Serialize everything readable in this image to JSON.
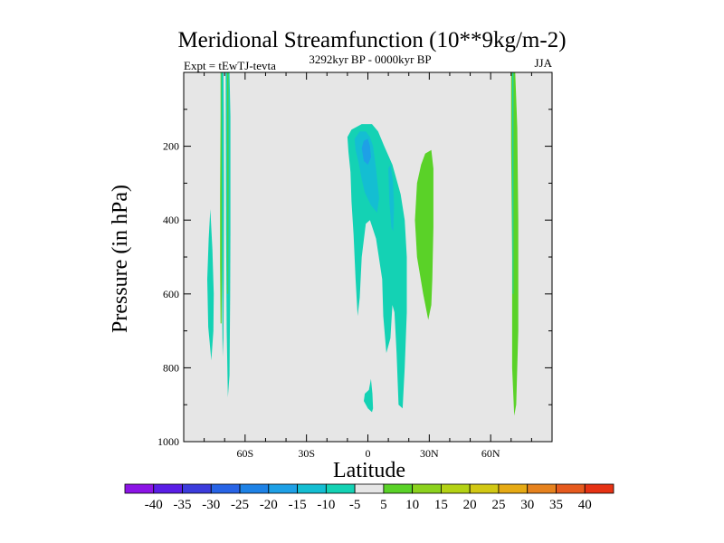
{
  "chart_data": {
    "type": "contour",
    "title": "Meridional Streamfunction (10**9kg/m-2)",
    "left_label": "Expt = tEwTJ-tevta",
    "center_label": "3292kyr BP - 0000kyr BP",
    "right_label": "JJA",
    "xlabel": "Latitude",
    "ylabel": "Pressure (in hPa)",
    "xlim": [
      -90,
      90
    ],
    "ylim": [
      1000,
      0
    ],
    "x_ticks": [
      {
        "value": -60,
        "label": "60S"
      },
      {
        "value": -30,
        "label": "30S"
      },
      {
        "value": 0,
        "label": "0"
      },
      {
        "value": 30,
        "label": "30N"
      },
      {
        "value": 60,
        "label": "60N"
      }
    ],
    "y_ticks": [
      {
        "value": 200,
        "label": "200"
      },
      {
        "value": 400,
        "label": "400"
      },
      {
        "value": 600,
        "label": "600"
      },
      {
        "value": 800,
        "label": "800"
      },
      {
        "value": 1000,
        "label": "1000"
      }
    ],
    "colorbar": {
      "levels": [
        "-40",
        "-35",
        "-30",
        "-25",
        "-20",
        "-15",
        "-10",
        "-5",
        "5",
        "10",
        "15",
        "20",
        "25",
        "30",
        "35",
        "40"
      ],
      "colors": [
        "#8c14e6",
        "#5a1ee6",
        "#3c3cdc",
        "#2864e6",
        "#1e82e6",
        "#1ea0e6",
        "#14bed2",
        "#14d2b4",
        "#e6e6e6",
        "#5ad228",
        "#8cd21e",
        "#b4d214",
        "#d2c814",
        "#e6aa14",
        "#e6821e",
        "#e65a1e",
        "#e63214"
      ]
    },
    "regions": [
      {
        "name": "band-70s-green",
        "level": "5 to 10",
        "color": "#5ad228",
        "points": [
          [
            -72,
            0
          ],
          [
            -71,
            0
          ],
          [
            -71,
            120
          ],
          [
            -71.2,
            330
          ],
          [
            -71.3,
            520
          ],
          [
            -71.5,
            680
          ],
          [
            -72,
            680
          ],
          [
            -72.2,
            520
          ],
          [
            -72.2,
            330
          ],
          [
            -72,
            120
          ]
        ]
      },
      {
        "name": "band-70s-cyan-a",
        "level": "-10 to -5",
        "color": "#14d2b4",
        "points": [
          [
            -71.6,
            0
          ],
          [
            -70.6,
            0
          ],
          [
            -70.4,
            120
          ],
          [
            -70.3,
            330
          ],
          [
            -70.4,
            560
          ],
          [
            -70.6,
            720
          ],
          [
            -71,
            770
          ],
          [
            -71.3,
            560
          ],
          [
            -71.4,
            330
          ]
        ]
      },
      {
        "name": "band-70s-cyan-b",
        "level": "-10 to -5",
        "color": "#14d2b4",
        "points": [
          [
            -69.5,
            0
          ],
          [
            -67.6,
            0
          ],
          [
            -67.2,
            120
          ],
          [
            -67.2,
            430
          ],
          [
            -67.3,
            610
          ],
          [
            -67.6,
            820
          ],
          [
            -68.4,
            880
          ],
          [
            -69,
            700
          ],
          [
            -69.3,
            430
          ]
        ]
      },
      {
        "name": "band-70s-green-b",
        "level": "5 to 10",
        "color": "#5ad228",
        "points": [
          [
            -68.7,
            0
          ],
          [
            -68.2,
            0
          ],
          [
            -68.1,
            300
          ],
          [
            -68.3,
            600
          ],
          [
            -68.6,
            600
          ],
          [
            -68.7,
            300
          ]
        ]
      },
      {
        "name": "blob-78s",
        "level": "-10 to -5",
        "color": "#14d2b4",
        "points": [
          [
            -77,
            370
          ],
          [
            -76,
            480
          ],
          [
            -75.3,
            600
          ],
          [
            -75.5,
            700
          ],
          [
            -76.5,
            780
          ],
          [
            -78,
            690
          ],
          [
            -78.5,
            560
          ],
          [
            -77.8,
            450
          ]
        ]
      },
      {
        "name": "central-cell",
        "level": "-10 to -5",
        "color": "#14d2b4",
        "points": [
          [
            -10,
            175
          ],
          [
            -8,
            155
          ],
          [
            -3,
            140
          ],
          [
            2,
            140
          ],
          [
            5,
            160
          ],
          [
            8,
            200
          ],
          [
            12,
            250
          ],
          [
            16,
            330
          ],
          [
            18,
            400
          ],
          [
            19,
            500
          ],
          [
            19,
            650
          ],
          [
            18,
            800
          ],
          [
            17,
            910
          ],
          [
            15,
            900
          ],
          [
            14,
            760
          ],
          [
            13,
            650
          ],
          [
            12,
            630
          ],
          [
            11,
            720
          ],
          [
            9,
            760
          ],
          [
            7.5,
            660
          ],
          [
            7,
            560
          ],
          [
            4,
            450
          ],
          [
            1,
            400
          ],
          [
            -1,
            410
          ],
          [
            -3,
            500
          ],
          [
            -4,
            610
          ],
          [
            -5,
            660
          ],
          [
            -6,
            560
          ],
          [
            -7,
            440
          ],
          [
            -8,
            350
          ],
          [
            -8.5,
            270
          ],
          [
            -9.5,
            215
          ]
        ]
      },
      {
        "name": "central-inner",
        "level": "-15 to -10",
        "color": "#14bed2",
        "points": [
          [
            -6.5,
            180
          ],
          [
            -4,
            160
          ],
          [
            -1,
            160
          ],
          [
            1,
            175
          ],
          [
            2.5,
            200
          ],
          [
            4,
            260
          ],
          [
            5.5,
            340
          ],
          [
            4.5,
            380
          ],
          [
            1.5,
            360
          ],
          [
            -1.5,
            325
          ],
          [
            -3,
            290
          ],
          [
            -4.5,
            245
          ],
          [
            -6,
            210
          ]
        ]
      },
      {
        "name": "central-core",
        "level": "-20 to -15",
        "color": "#1ea0e6",
        "points": [
          [
            -3,
            205
          ],
          [
            -2,
            185
          ],
          [
            0,
            180
          ],
          [
            1,
            200
          ],
          [
            1.5,
            230
          ],
          [
            0,
            250
          ],
          [
            -2,
            240
          ]
        ]
      },
      {
        "name": "central-side",
        "level": "-15 to -10",
        "color": "#14bed2",
        "points": [
          [
            10,
            260
          ],
          [
            11,
            250
          ],
          [
            12.2,
            290
          ],
          [
            12.8,
            360
          ],
          [
            12.4,
            430
          ],
          [
            11.5,
            420
          ],
          [
            10.5,
            350
          ]
        ]
      },
      {
        "name": "blob-bottom-0",
        "level": "-10 to -5",
        "color": "#14d2b4",
        "points": [
          [
            1.5,
            830
          ],
          [
            2.2,
            870
          ],
          [
            2.5,
            910
          ],
          [
            2,
            920
          ],
          [
            0,
            910
          ],
          [
            -2,
            890
          ],
          [
            -1.5,
            870
          ],
          [
            0.5,
            860
          ]
        ]
      },
      {
        "name": "green-25n",
        "level": "5 to 10",
        "color": "#5ad228",
        "points": [
          [
            28,
            220
          ],
          [
            31,
            210
          ],
          [
            32,
            260
          ],
          [
            32,
            420
          ],
          [
            31.5,
            560
          ],
          [
            31,
            630
          ],
          [
            29.5,
            670
          ],
          [
            27,
            600
          ],
          [
            24,
            500
          ],
          [
            23,
            400
          ],
          [
            24,
            300
          ],
          [
            26,
            250
          ]
        ]
      },
      {
        "name": "green-70n",
        "level": "5 to 10",
        "color": "#5ad228",
        "points": [
          [
            70,
            0
          ],
          [
            72,
            0
          ],
          [
            73,
            150
          ],
          [
            73.5,
            400
          ],
          [
            73.5,
            700
          ],
          [
            72.5,
            900
          ],
          [
            71.5,
            930
          ],
          [
            70.5,
            800
          ],
          [
            70.5,
            500
          ],
          [
            70,
            200
          ]
        ]
      },
      {
        "name": "cyan-70n",
        "level": "-10 to -5",
        "color": "#14d2b4",
        "points": [
          [
            70.6,
            0
          ],
          [
            71.1,
            0
          ],
          [
            71.1,
            300
          ],
          [
            71.1,
            600
          ],
          [
            70.8,
            600
          ],
          [
            70.6,
            300
          ]
        ]
      }
    ]
  }
}
